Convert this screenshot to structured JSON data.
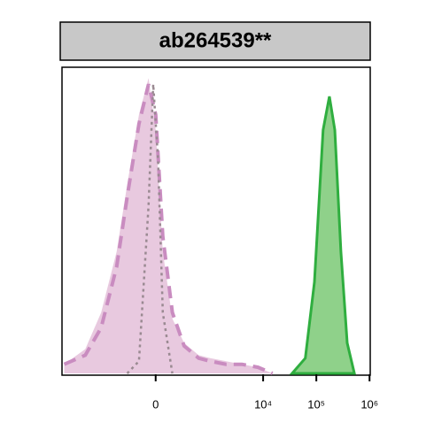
{
  "chart_data": {
    "type": "histogram-overlay",
    "title": "ab264539**",
    "xscale": "biexponential",
    "xlim": [
      -5500,
      1030000
    ],
    "ylim": [
      0,
      100
    ],
    "xticks": [
      0,
      {
        "value": 10000,
        "label": "10⁴"
      },
      {
        "value": 100000,
        "label": "10⁵"
      },
      {
        "value": 1000000,
        "label": "10⁶"
      }
    ],
    "series": [
      {
        "style": "fill",
        "color": "#e8c9df",
        "x": [
          -5000,
          -2000,
          -1000,
          -500,
          -300,
          -150,
          -60,
          0,
          60,
          150,
          300,
          600,
          1000,
          2000,
          4000,
          8000,
          15000
        ],
        "values": [
          3,
          8,
          20,
          40,
          62,
          85,
          97,
          80,
          40,
          18,
          10,
          6,
          5,
          4,
          3,
          2,
          0
        ]
      },
      {
        "style": "dashed",
        "color": "#c98cc0",
        "x": [
          -5000,
          -2000,
          -1000,
          -500,
          -300,
          -150,
          -60,
          0,
          60,
          150,
          300,
          600,
          1000,
          2000,
          4000,
          8000,
          15000
        ],
        "values": [
          3,
          6,
          15,
          35,
          58,
          82,
          95,
          85,
          45,
          20,
          9,
          5,
          4,
          3,
          3,
          2,
          0
        ]
      },
      {
        "style": "dotted",
        "color": "#9a8a92",
        "x": [
          -300,
          -150,
          -60,
          -20,
          20,
          60,
          150
        ],
        "values": [
          0,
          4,
          55,
          95,
          70,
          20,
          0
        ]
      },
      {
        "style": "fill-line",
        "color": "#2fae3f",
        "fill": "#8fd18a",
        "x": [
          35000,
          62000,
          92000,
          134000,
          176000,
          222000,
          290000,
          380000,
          518000
        ],
        "values": [
          0,
          5,
          30,
          80,
          91,
          80,
          40,
          10,
          0
        ]
      }
    ]
  }
}
